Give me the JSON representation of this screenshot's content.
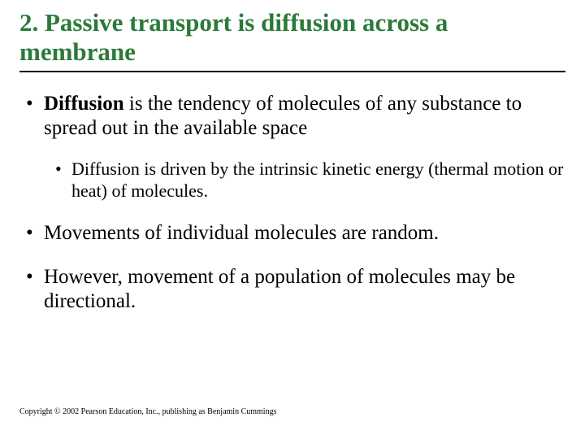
{
  "title": "2. Passive transport is diffusion across a membrane",
  "bullets": {
    "b1_bold": "Diffusion",
    "b1_rest": " is the tendency of molecules of any substance to spread out in the available space",
    "b1_sub": "Diffusion is driven by the intrinsic kinetic energy (thermal motion or heat) of molecules.",
    "b2": "Movements of individual molecules are random.",
    "b3": "However, movement of a population of molecules may be directional."
  },
  "copyright": "Copyright © 2002 Pearson Education, Inc., publishing as Benjamin Cummings",
  "colors": {
    "title": "#2a7a3a",
    "rule": "#000000",
    "text": "#000000",
    "background": "#ffffff"
  },
  "typography": {
    "title_fontsize": 31,
    "level1_fontsize": 25,
    "level2_fontsize": 22,
    "copyright_fontsize": 10,
    "font_family": "Times New Roman"
  }
}
